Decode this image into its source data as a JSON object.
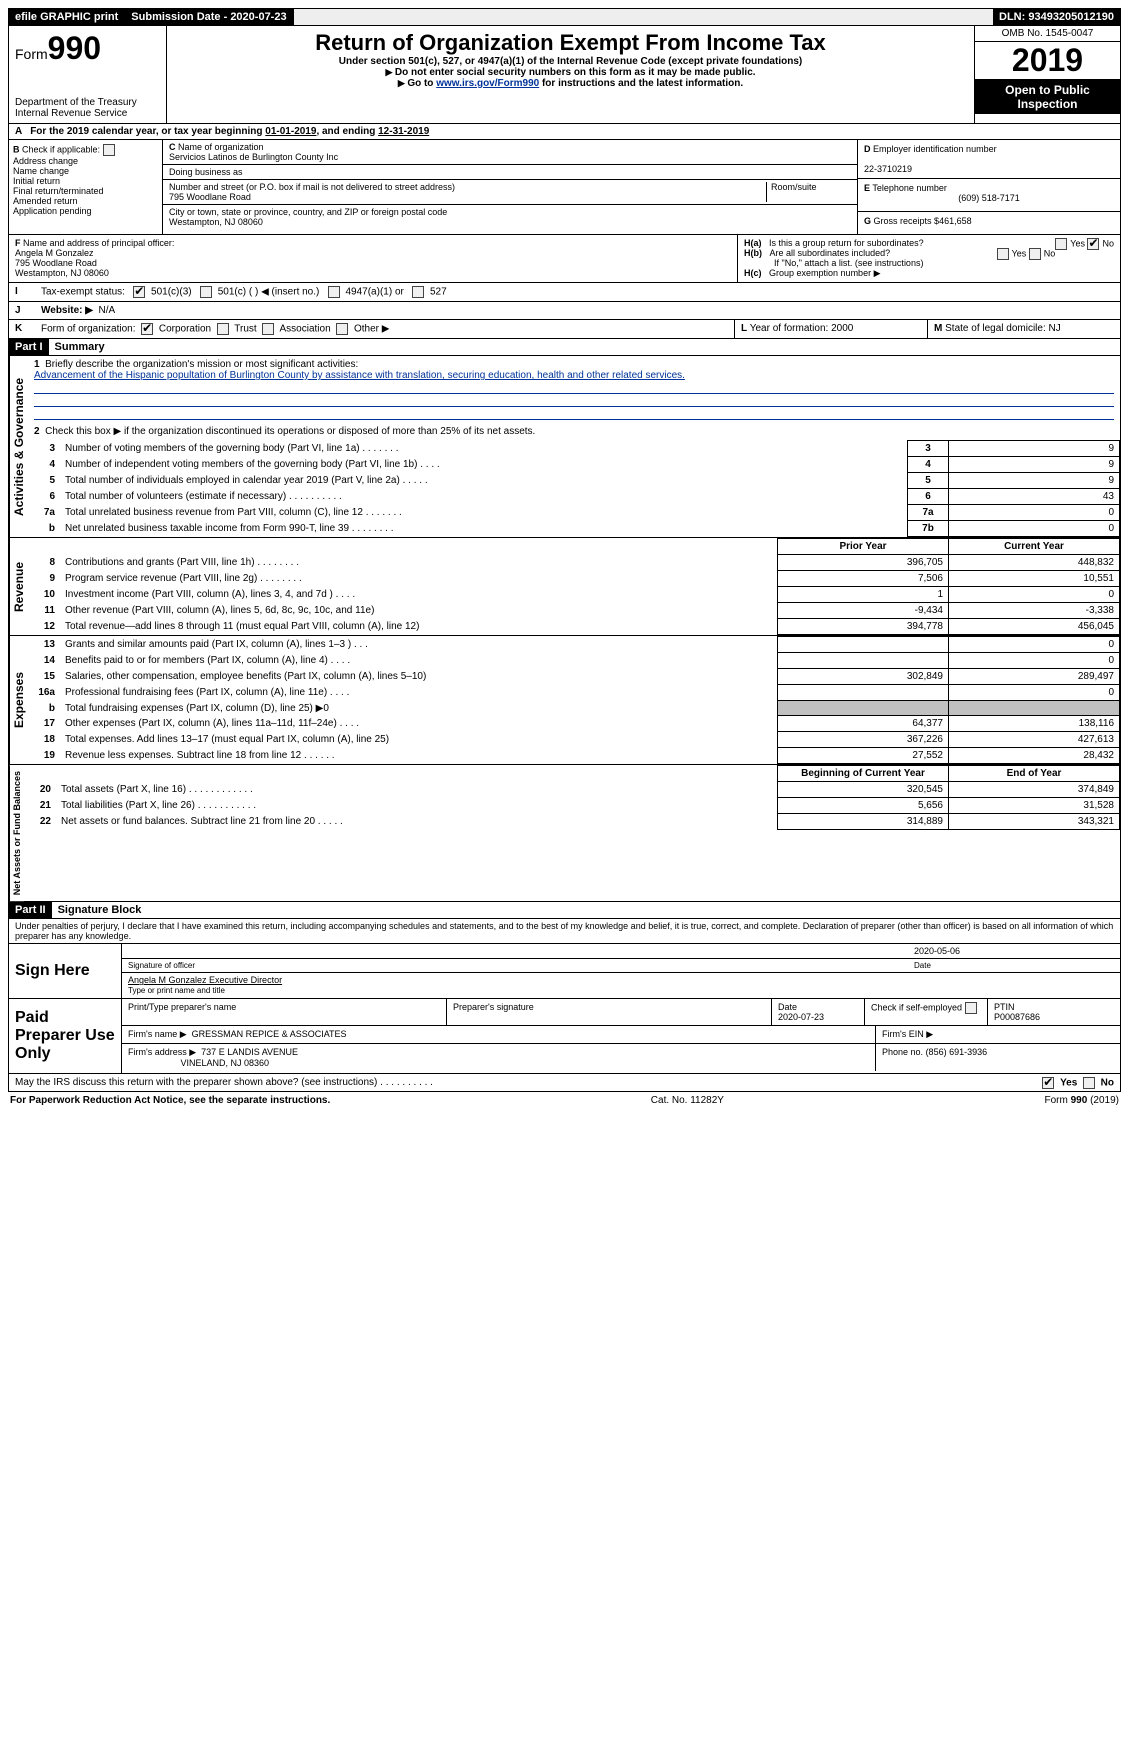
{
  "topbar": {
    "efile": "efile GRAPHIC print",
    "sub_label": "Submission Date - 2020-07-23",
    "dln": "DLN: 93493205012190"
  },
  "header": {
    "form_prefix": "Form",
    "form_no": "990",
    "dept1": "Department of the Treasury",
    "dept2": "Internal Revenue Service",
    "title": "Return of Organization Exempt From Income Tax",
    "sub1": "Under section 501(c), 527, or 4947(a)(1) of the Internal Revenue Code (except private foundations)",
    "sub2": "Do not enter social security numbers on this form as it may be made public.",
    "sub3a": "Go to ",
    "sub3_link": "www.irs.gov/Form990",
    "sub3b": " for instructions and the latest information.",
    "omb": "OMB No. 1545-0047",
    "year": "2019",
    "open": "Open to Public Inspection"
  },
  "rowA": {
    "text_a": "For the 2019 calendar year, or tax year beginning ",
    "begin": "01-01-2019",
    "text_b": ", and ending ",
    "end": "12-31-2019"
  },
  "B": {
    "label": "Check if applicable:",
    "items": [
      "Address change",
      "Name change",
      "Initial return",
      "Final return/terminated",
      "Amended return",
      "Application pending"
    ]
  },
  "C": {
    "label": "Name of organization",
    "org": "Servicios Latinos de Burlington County Inc",
    "dba_label": "Doing business as",
    "street_label": "Number and street (or P.O. box if mail is not delivered to street address)",
    "room_label": "Room/suite",
    "street": "795 Woodlane Road",
    "city_label": "City or town, state or province, country, and ZIP or foreign postal code",
    "city": "Westampton, NJ  08060"
  },
  "D": {
    "label": "Employer identification number",
    "val": "22-3710219"
  },
  "E": {
    "label": "Telephone number",
    "val": "(609) 518-7171"
  },
  "G": {
    "label": "Gross receipts $",
    "val": "461,658"
  },
  "F": {
    "label": "Name and address of principal officer:",
    "name": "Angela M Gonzalez",
    "street": "795 Woodlane Road",
    "city": "Westampton, NJ  08060"
  },
  "H": {
    "a": "Is this a group return for subordinates?",
    "b": "Are all subordinates included?",
    "b2": "If \"No,\" attach a list. (see instructions)",
    "c": "Group exemption number ▶",
    "yes": "Yes",
    "no": "No"
  },
  "I": {
    "label": "Tax-exempt status:",
    "o1": "501(c)(3)",
    "o2": "501(c) (   ) ◀ (insert no.)",
    "o3": "4947(a)(1) or",
    "o4": "527"
  },
  "J": {
    "label": "Website: ▶",
    "val": "N/A"
  },
  "K": {
    "label": "Form of organization:",
    "o1": "Corporation",
    "o2": "Trust",
    "o3": "Association",
    "o4": "Other ▶"
  },
  "L": {
    "label": "Year of formation:",
    "val": "2000"
  },
  "M": {
    "label": "State of legal domicile:",
    "val": "NJ"
  },
  "partI": {
    "hdr": "Part I",
    "title": "Summary"
  },
  "gov": {
    "tab": "Activities & Governance",
    "l1_label": "Briefly describe the organization's mission or most significant activities:",
    "l1_text": "Advancement of the Hispanic popultation of Burlington County by assistance with translation, securing education, health and other related services.",
    "l2": "Check this box ▶       if the organization discontinued its operations or disposed of more than 25% of its net assets.",
    "rows": [
      {
        "n": "3",
        "d": "Number of voting members of the governing body (Part VI, line 1a)   .     .     .     .     .     .     .",
        "b": "3",
        "v": "9"
      },
      {
        "n": "4",
        "d": "Number of independent voting members of the governing body (Part VI, line 1b)   .     .     .     .",
        "b": "4",
        "v": "9"
      },
      {
        "n": "5",
        "d": "Total number of individuals employed in calendar year 2019 (Part V, line 2a)   .     .     .     .     .",
        "b": "5",
        "v": "9"
      },
      {
        "n": "6",
        "d": "Total number of volunteers (estimate if necessary)   .     .     .     .     .     .     .     .     .     .",
        "b": "6",
        "v": "43"
      },
      {
        "n": "7a",
        "d": "Total unrelated business revenue from Part VIII, column (C), line 12   .     .     .     .     .     .     .",
        "b": "7a",
        "v": "0"
      },
      {
        "n": "b",
        "d": "Net unrelated business taxable income from Form 990-T, line 39   .     .     .     .     .     .     .     .",
        "b": "7b",
        "v": "0"
      }
    ]
  },
  "cols": {
    "prior": "Prior Year",
    "current": "Current Year",
    "bcy": "Beginning of Current Year",
    "eoy": "End of Year"
  },
  "rev": {
    "tab": "Revenue",
    "rows": [
      {
        "n": "8",
        "d": "Contributions and grants (Part VIII, line 1h)   .     .     .     .     .     .     .     .",
        "p": "396,705",
        "c": "448,832"
      },
      {
        "n": "9",
        "d": "Program service revenue (Part VIII, line 2g)   .     .     .     .     .     .     .     .",
        "p": "7,506",
        "c": "10,551"
      },
      {
        "n": "10",
        "d": "Investment income (Part VIII, column (A), lines 3, 4, and 7d )   .     .     .     .",
        "p": "1",
        "c": "0"
      },
      {
        "n": "11",
        "d": "Other revenue (Part VIII, column (A), lines 5, 6d, 8c, 9c, 10c, and 11e)",
        "p": "-9,434",
        "c": "-3,338"
      },
      {
        "n": "12",
        "d": "Total revenue—add lines 8 through 11 (must equal Part VIII, column (A), line 12)",
        "p": "394,778",
        "c": "456,045"
      }
    ]
  },
  "exp": {
    "tab": "Expenses",
    "rows": [
      {
        "n": "13",
        "d": "Grants and similar amounts paid (Part IX, column (A), lines 1–3 )   .     .     .",
        "p": "",
        "c": "0"
      },
      {
        "n": "14",
        "d": "Benefits paid to or for members (Part IX, column (A), line 4)   .     .     .     .",
        "p": "",
        "c": "0"
      },
      {
        "n": "15",
        "d": "Salaries, other compensation, employee benefits (Part IX, column (A), lines 5–10)",
        "p": "302,849",
        "c": "289,497"
      },
      {
        "n": "16a",
        "d": "Professional fundraising fees (Part IX, column (A), line 11e)   .     .     .     .",
        "p": "",
        "c": "0"
      },
      {
        "n": "b",
        "d": "Total fundraising expenses (Part IX, column (D), line 25) ▶0",
        "p": "GRAY",
        "c": "GRAY"
      },
      {
        "n": "17",
        "d": "Other expenses (Part IX, column (A), lines 11a–11d, 11f–24e)   .     .     .     .",
        "p": "64,377",
        "c": "138,116"
      },
      {
        "n": "18",
        "d": "Total expenses. Add lines 13–17 (must equal Part IX, column (A), line 25)",
        "p": "367,226",
        "c": "427,613"
      },
      {
        "n": "19",
        "d": "Revenue less expenses. Subtract line 18 from line 12   .     .     .     .     .     .",
        "p": "27,552",
        "c": "28,432"
      }
    ]
  },
  "na": {
    "tab": "Net Assets or Fund Balances",
    "rows": [
      {
        "n": "20",
        "d": "Total assets (Part X, line 16)   .     .     .     .     .     .     .     .     .     .     .     .",
        "p": "320,545",
        "c": "374,849"
      },
      {
        "n": "21",
        "d": "Total liabilities (Part X, line 26)   .     .     .     .     .     .     .     .     .     .     .",
        "p": "5,656",
        "c": "31,528"
      },
      {
        "n": "22",
        "d": "Net assets or fund balances. Subtract line 21 from line 20   .     .     .     .     .",
        "p": "314,889",
        "c": "343,321"
      }
    ]
  },
  "partII": {
    "hdr": "Part II",
    "title": "Signature Block"
  },
  "perjury": "Under penalties of perjury, I declare that I have examined this return, including accompanying schedules and statements, and to the best of my knowledge and belief, it is true, correct, and complete. Declaration of preparer (other than officer) is based on all information of which preparer has any knowledge.",
  "sign": {
    "here": "Sign Here",
    "date": "2020-05-06",
    "sig_label": "Signature of officer",
    "date_label": "Date",
    "name": "Angela M Gonzalez  Executive Director",
    "name_label": "Type or print name and title"
  },
  "paid": {
    "label": "Paid Preparer Use Only",
    "h1": "Print/Type preparer's name",
    "h2": "Preparer's signature",
    "h3": "Date",
    "h4": "Check        if self-employed",
    "h5": "PTIN",
    "date": "2020-07-23",
    "ptin": "P00087686",
    "firm_label": "Firm's name    ▶",
    "firm": "GRESSMAN REPICE & ASSOCIATES",
    "ein_label": "Firm's EIN ▶",
    "addr_label": "Firm's address ▶",
    "addr1": "737 E LANDIS AVENUE",
    "addr2": "VINELAND, NJ  08360",
    "phone_label": "Phone no.",
    "phone": "(856) 691-3936"
  },
  "discuss": {
    "q": "May the IRS discuss this return with the preparer shown above? (see instructions)   .     .     .     .     .     .     .     .     .     .",
    "yes": "Yes",
    "no": "No"
  },
  "footer": {
    "left": "For Paperwork Reduction Act Notice, see the separate instructions.",
    "mid": "Cat. No. 11282Y",
    "right": "Form 990 (2019)"
  }
}
